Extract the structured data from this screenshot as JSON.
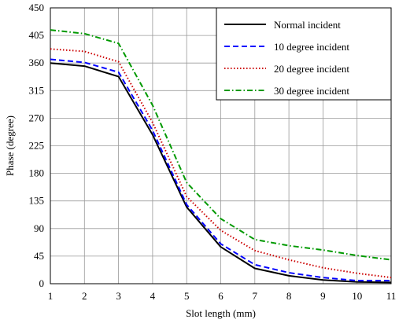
{
  "chart_data": {
    "type": "line",
    "title": "",
    "xlabel": "Slot length (mm)",
    "ylabel": "Phase (degree)",
    "x": [
      1,
      2,
      3,
      4,
      5,
      6,
      7,
      8,
      9,
      10,
      11
    ],
    "xlim": [
      1,
      11
    ],
    "ylim": [
      0,
      450
    ],
    "xticks": [
      "1",
      "2",
      "3",
      "4",
      "5",
      "6",
      "7",
      "8",
      "9",
      "10",
      "11"
    ],
    "yticks": [
      "0",
      "45",
      "90",
      "135",
      "180",
      "225",
      "270",
      "315",
      "360",
      "405",
      "450"
    ],
    "grid": true,
    "legend_position": "top-right",
    "series": [
      {
        "name": "Normal incident",
        "color": "#000000",
        "dash": "solid",
        "values": [
          360,
          355,
          338,
          243,
          125,
          60,
          25,
          13,
          6,
          3,
          2
        ]
      },
      {
        "name": "10 degree incident",
        "color": "#0000ff",
        "dash": "dashed",
        "values": [
          366,
          361,
          345,
          250,
          129,
          65,
          31,
          18,
          10,
          5,
          5
        ]
      },
      {
        "name": "20 degree incident",
        "color": "#cc0000",
        "dash": "dotted",
        "values": [
          383,
          379,
          362,
          263,
          142,
          87,
          54,
          39,
          26,
          17,
          10
        ]
      },
      {
        "name": "30 degree incident",
        "color": "#009900",
        "dash": "dashdot",
        "values": [
          414,
          408,
          392,
          291,
          165,
          106,
          72,
          62,
          55,
          46,
          39
        ]
      }
    ]
  }
}
